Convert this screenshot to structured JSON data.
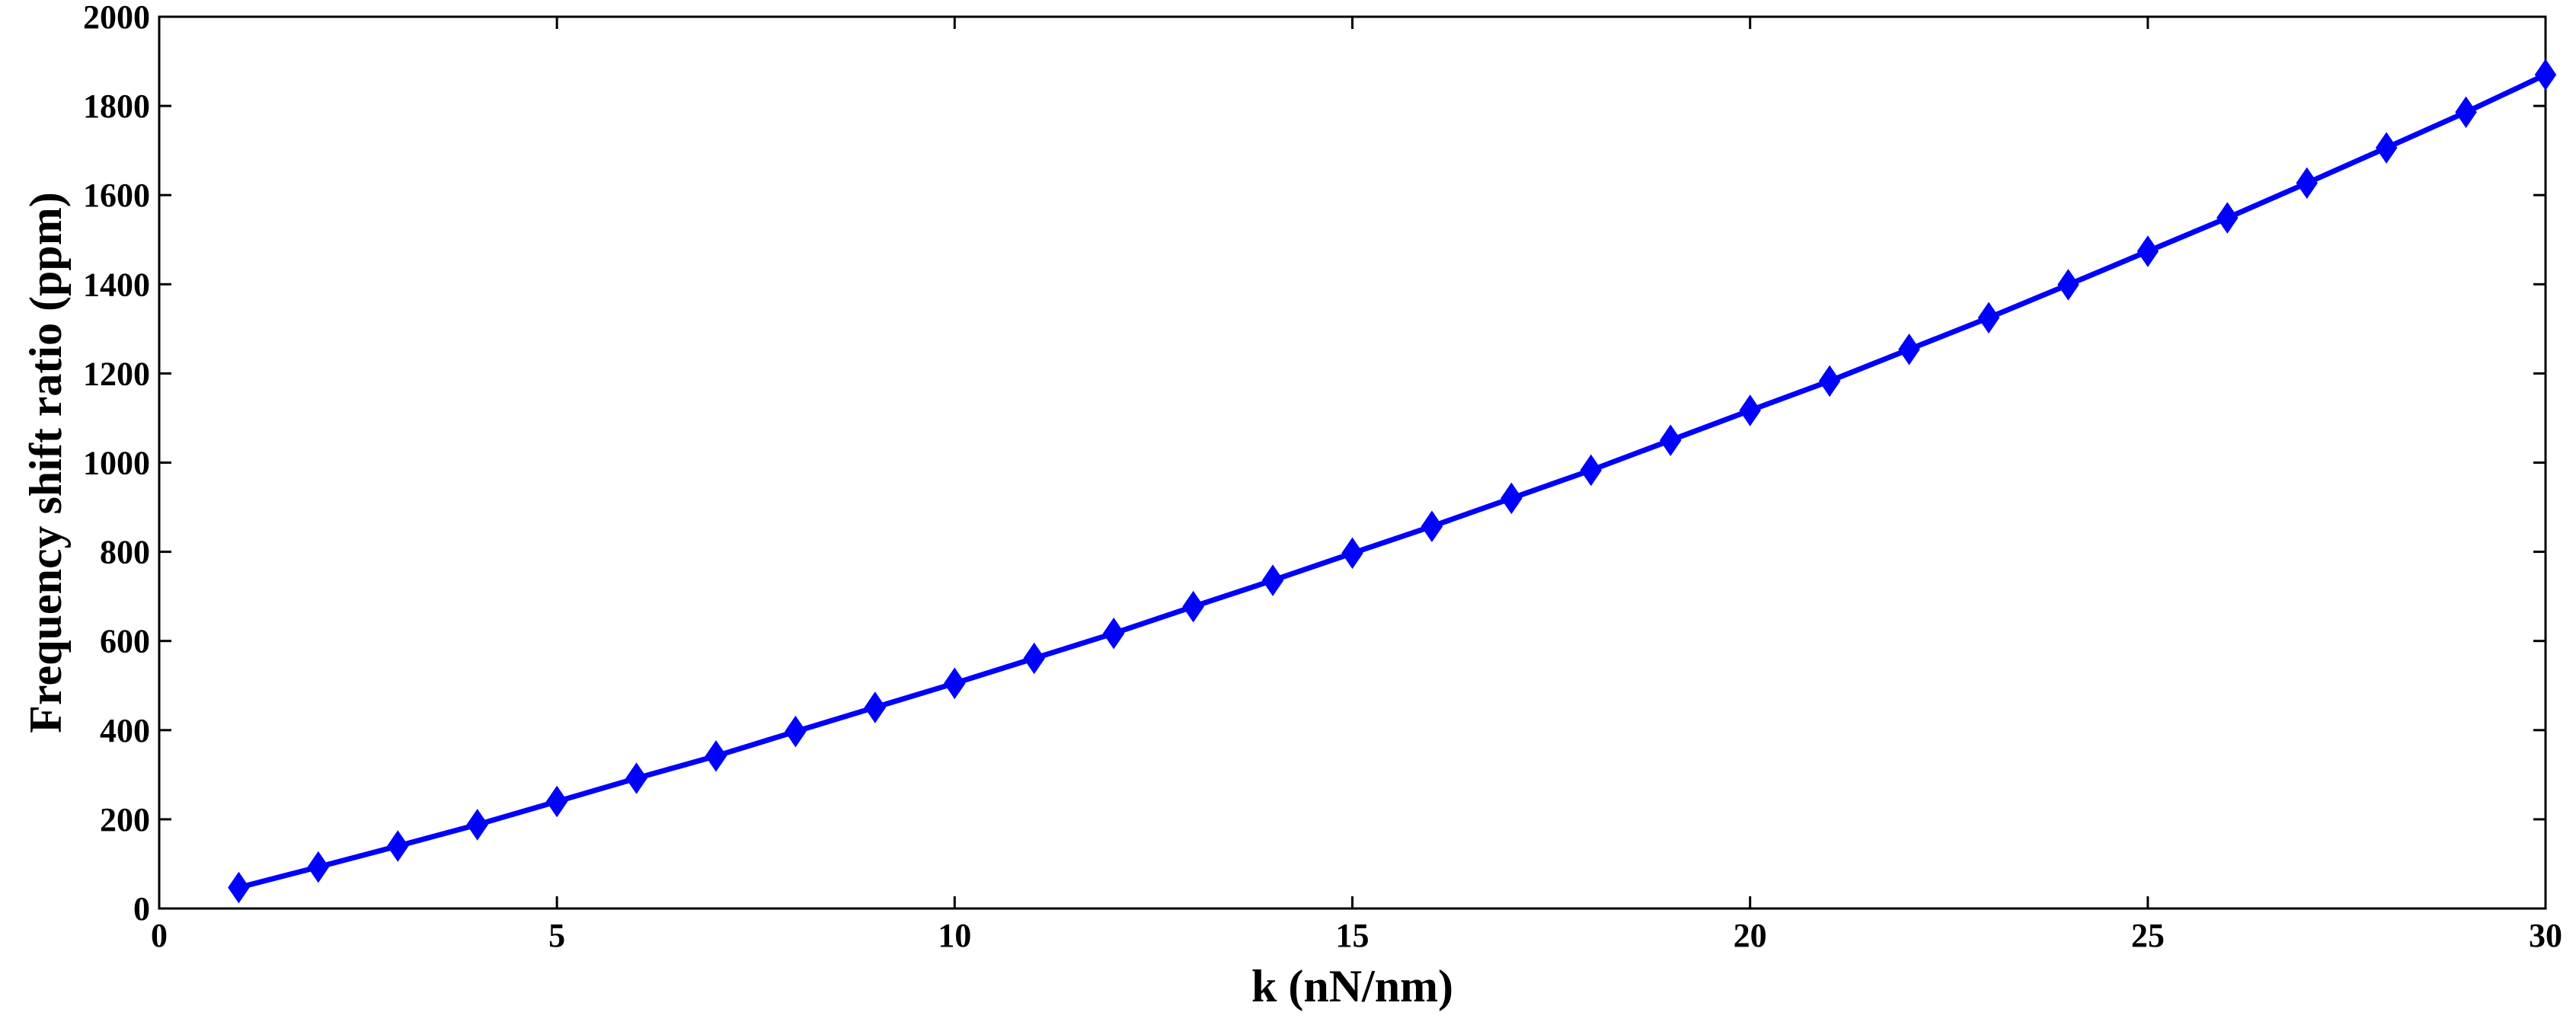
{
  "chart_data": {
    "type": "line",
    "title": "",
    "xlabel": "k (nN/nm)",
    "ylabel": "Frequency shift ratio (ppm)",
    "xlim": [
      0,
      30
    ],
    "ylim": [
      0,
      2000
    ],
    "xticks": [
      0,
      5,
      10,
      15,
      20,
      25,
      30
    ],
    "yticks": [
      0,
      200,
      400,
      600,
      800,
      1000,
      1200,
      1400,
      1600,
      1800,
      2000
    ],
    "grid": false,
    "marker": "diamond",
    "colors": {
      "series": "#0000ff",
      "axes": "#000000"
    },
    "series": [
      {
        "x": [
          1,
          2,
          3,
          4,
          5,
          6,
          7,
          8,
          9,
          10,
          11,
          12,
          13,
          14,
          15,
          16,
          17,
          18,
          19,
          20,
          21,
          22,
          23,
          24,
          25,
          26,
          27,
          28,
          29,
          30
        ],
        "y": [
          47,
          93,
          140,
          188,
          240,
          292,
          342,
          397,
          451,
          505,
          561,
          617,
          677,
          736,
          797,
          857,
          920,
          983,
          1050,
          1117,
          1183,
          1254,
          1325,
          1399,
          1474,
          1549,
          1627,
          1706,
          1786,
          1870
        ]
      }
    ]
  }
}
